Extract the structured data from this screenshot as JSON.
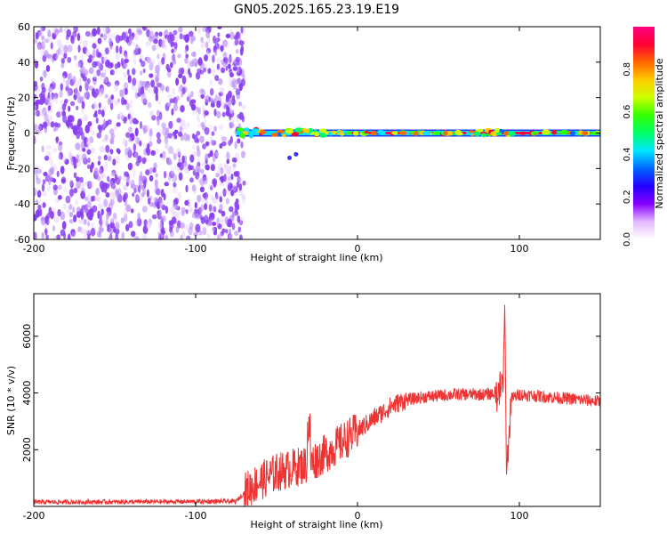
{
  "title": "GN05.2025.165.23.19.E19",
  "colors": {
    "snr_line": "#ee3333",
    "noise_dots": "#8a3ff0",
    "colormap": [
      "#ffffff",
      "#e3b9ff",
      "#8800ff",
      "#2400ff",
      "#0066ff",
      "#00e6ff",
      "#00ff66",
      "#33ff00",
      "#ccff00",
      "#ffcc00",
      "#ff6600",
      "#ff0033",
      "#ff0080"
    ]
  },
  "chart_data": [
    {
      "type": "heatmap",
      "xlabel": "Height of straight line (km)",
      "ylabel": "Frequency (Hz)",
      "xlim": [
        -200,
        150
      ],
      "ylim": [
        -60,
        60
      ],
      "xticks": [
        -200,
        -100,
        0,
        100
      ],
      "yticks": [
        -60,
        -40,
        -20,
        0,
        20,
        40,
        60
      ],
      "colorbar": {
        "label": "Normalized spectral amplitude",
        "range": [
          0,
          1
        ],
        "ticks": [
          "0.0",
          "0.2",
          "0.4",
          "0.6",
          "0.8"
        ]
      },
      "noise_region_x": [
        -200,
        -70
      ],
      "signal_band": {
        "x_start": -75,
        "x_end": 150,
        "center_frequency": 0
      }
    },
    {
      "type": "line",
      "xlabel": "Height of straight line (km)",
      "ylabel": "SNR (10 * v/v)",
      "xlim": [
        -200,
        150
      ],
      "ylim": [
        0,
        7500
      ],
      "xticks": [
        -200,
        -100,
        0,
        100
      ],
      "yticks": [
        2000,
        4000,
        6000
      ],
      "grid": false,
      "series": [
        {
          "x": [
            -200,
            -150,
            -100,
            -75,
            -68,
            -60,
            -50,
            -40,
            -30,
            -20,
            -10,
            0,
            10,
            20,
            25,
            30,
            40,
            50,
            60,
            70,
            80,
            85,
            88,
            90,
            91,
            92,
            95,
            100,
            110,
            120,
            130,
            140,
            150
          ],
          "y": [
            150,
            160,
            170,
            180,
            600,
            900,
            1200,
            1350,
            1500,
            1850,
            2250,
            2650,
            3100,
            3500,
            3650,
            3750,
            3850,
            3900,
            3950,
            3950,
            3950,
            4000,
            4100,
            4200,
            7300,
            1100,
            3800,
            3950,
            3900,
            3850,
            3800,
            3750,
            3700
          ]
        }
      ]
    }
  ]
}
